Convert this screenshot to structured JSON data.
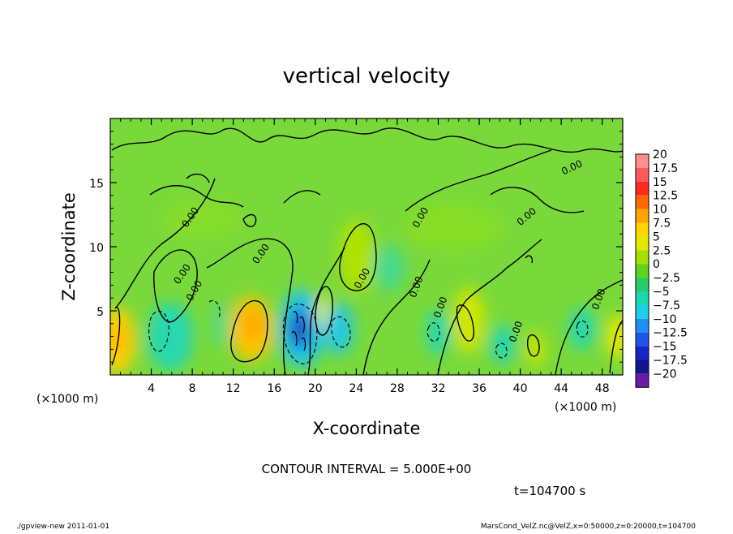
{
  "chart_data": {
    "type": "heatmap",
    "title": "vertical velocity",
    "xlabel": "X-coordinate",
    "ylabel": "Z-coordinate",
    "x_unit": "(×1000 m)",
    "y_unit": "(×1000 m)",
    "xlim": [
      0,
      50
    ],
    "ylim": [
      0,
      20
    ],
    "x_ticks": [
      "4",
      "8",
      "12",
      "16",
      "20",
      "24",
      "28",
      "32",
      "36",
      "40",
      "44",
      "48"
    ],
    "y_ticks": [
      "5",
      "10",
      "15"
    ],
    "colorbar": {
      "labels": [
        "20",
        "17.5",
        "15",
        "12.5",
        "10",
        "7.5",
        "5",
        "2.5",
        "0",
        "−2.5",
        "−5",
        "−7.5",
        "−10",
        "−12.5",
        "−15",
        "−17.5",
        "−20"
      ],
      "colors": [
        "#ff8f8f",
        "#ff5a5a",
        "#ff2a1e",
        "#ff6a00",
        "#ffa400",
        "#ffd400",
        "#e2e800",
        "#a6e000",
        "#5fd21e",
        "#26cc6a",
        "#18d8ae",
        "#1ccfe8",
        "#1e8ff5",
        "#1e55ea",
        "#1626c8",
        "#10168c",
        "#6a1aa8"
      ]
    },
    "contour_interval": "CONTOUR INTERVAL = 5.000E+00",
    "time": "t=104700 s",
    "contour_label": "0.00"
  },
  "footer": {
    "left": "./gpview-new   2011-01-01",
    "right": "MarsCond_VelZ.nc@VelZ,x=0:50000,z=0:20000,t=104700"
  }
}
